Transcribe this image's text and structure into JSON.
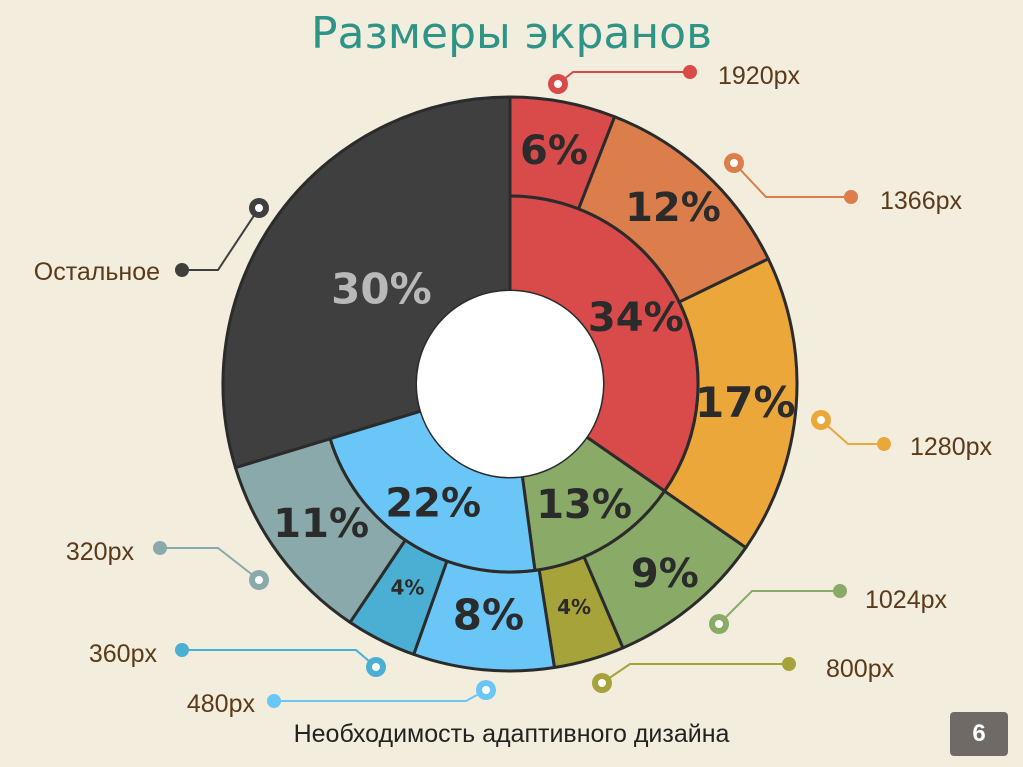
{
  "slide": {
    "title": "Размеры экранов",
    "footer": "Необходимость адаптивного дизайна",
    "page_number": "6"
  },
  "chart_data": {
    "type": "pie",
    "variant": "double-donut",
    "title": "Размеры экранов",
    "outer_ring": [
      {
        "label": "1920px",
        "value": 6,
        "display": "6%",
        "color": "#d94b4b"
      },
      {
        "label": "1366px",
        "value": 12,
        "display": "12%",
        "color": "#db7e4c"
      },
      {
        "label": "1280px",
        "value": 17,
        "display": "17%",
        "color": "#eba73a"
      },
      {
        "label": "1024px",
        "value": 9,
        "display": "9%",
        "color": "#8aab68"
      },
      {
        "label": "800px",
        "value": 4,
        "display": "4%",
        "color": "#a6a33a"
      },
      {
        "label": "480px",
        "value": 8,
        "display": "8%",
        "color": "#6ac6f7"
      },
      {
        "label": "360px",
        "value": 4,
        "display": "4%",
        "color": "#4aafd2"
      },
      {
        "label": "320px",
        "value": 11,
        "display": "11%",
        "color": "#89a9ab"
      },
      {
        "label": "Остальное",
        "value": 30,
        "display": "30%",
        "color": "#3f3f3f"
      }
    ],
    "inner_ring": [
      {
        "value": 34,
        "display": "34%",
        "color": "#d94b4b"
      },
      {
        "value": 13,
        "display": "13%",
        "color": "#8aab68"
      },
      {
        "value": 22,
        "display": "22%",
        "color": "#6ac6f7"
      }
    ],
    "legend_placement": "callouts around chart"
  }
}
